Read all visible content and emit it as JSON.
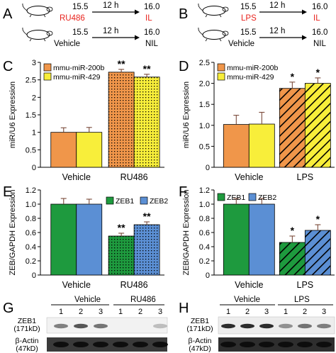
{
  "colors": {
    "orange": "#f0964a",
    "yellow": "#f8ee3a",
    "green": "#1e9a3e",
    "blue": "#5b8fd4",
    "treat_label": "#e8231d"
  },
  "panel_a": {
    "letter": "A",
    "rows": [
      {
        "t0": "15.5",
        "treatment": "RU486",
        "arrow_label": "12 h",
        "t1": "16.0",
        "outcome": "IL"
      },
      {
        "t0": "15.5",
        "treatment": "Vehicle",
        "arrow_label": "12 h",
        "t1": "16.0",
        "outcome": "NIL"
      }
    ]
  },
  "panel_b": {
    "letter": "B",
    "rows": [
      {
        "t0": "15.5",
        "treatment": "LPS",
        "arrow_label": "12 h",
        "t1": "16.0",
        "outcome": "IL"
      },
      {
        "t0": "15.5",
        "treatment": "Vehicle",
        "arrow_label": "12 h",
        "t1": "16.0",
        "outcome": "NIL"
      }
    ]
  },
  "chart_data": [
    {
      "panel": "C",
      "type": "bar",
      "ylabel": "miR/U6 Expression",
      "categories": [
        "Vehicle",
        "RU486"
      ],
      "ylim": [
        0,
        3.0
      ],
      "yticks": [
        "0",
        "0.5",
        "1",
        "1.5",
        "2",
        "2.5",
        "3"
      ],
      "series": [
        {
          "name": "mmu-miR-200b",
          "values": [
            1.0,
            2.72
          ],
          "errors": [
            0.13,
            0.08
          ],
          "color": "#f0964a"
        },
        {
          "name": "mmu-miR-429",
          "values": [
            1.0,
            2.58
          ],
          "errors": [
            0.14,
            0.08
          ],
          "color": "#f8ee3a"
        }
      ],
      "significance": [
        "",
        "**"
      ],
      "pattern": "dots",
      "legend": "top-left"
    },
    {
      "panel": "D",
      "type": "bar",
      "ylabel": "miR/U6 Expression",
      "categories": [
        "Vehicle",
        "LPS"
      ],
      "ylim": [
        0,
        2.5
      ],
      "yticks": [
        "0",
        "0.5",
        "1.0",
        "1.5",
        "2.0",
        "2.5"
      ],
      "series": [
        {
          "name": "mmu-miR-200b",
          "values": [
            1.02,
            1.88
          ],
          "errors": [
            0.22,
            0.15
          ],
          "color": "#f0964a"
        },
        {
          "name": "mmu-miR-429",
          "values": [
            1.03,
            2.0
          ],
          "errors": [
            0.28,
            0.13
          ],
          "color": "#f8ee3a"
        }
      ],
      "significance": [
        "",
        "*"
      ],
      "pattern": "hatch",
      "legend": "top-left"
    },
    {
      "panel": "E",
      "type": "bar",
      "ylabel": "ZEB/GAPDH Expression",
      "categories": [
        "Vehicle",
        "RU486"
      ],
      "ylim": [
        0,
        1.2
      ],
      "yticks": [
        "0",
        "0.2",
        "0.4",
        "0.6",
        "0.8",
        "1.0",
        "1.2"
      ],
      "series": [
        {
          "name": "ZEB1",
          "values": [
            1.0,
            0.55
          ],
          "errors": [
            0.08,
            0.04
          ],
          "color": "#1e9a3e"
        },
        {
          "name": "ZEB2",
          "values": [
            1.0,
            0.71
          ],
          "errors": [
            0.07,
            0.04
          ],
          "color": "#5b8fd4"
        }
      ],
      "significance": [
        "",
        "**"
      ],
      "pattern": "dots",
      "legend": "top-right"
    },
    {
      "panel": "F",
      "type": "bar",
      "ylabel": "ZEB/GAPDH Expression",
      "categories": [
        "Vehicle",
        "LPS"
      ],
      "ylim": [
        0,
        1.2
      ],
      "yticks": [
        "0",
        "0.2",
        "0.4",
        "0.6",
        "0.8",
        "1.0",
        "1.2"
      ],
      "series": [
        {
          "name": "ZEB1",
          "values": [
            1.0,
            0.46
          ],
          "errors": [
            0.08,
            0.09
          ],
          "color": "#1e9a3e"
        },
        {
          "name": "ZEB2",
          "values": [
            1.0,
            0.63
          ],
          "errors": [
            0.08,
            0.08
          ],
          "color": "#5b8fd4"
        }
      ],
      "significance": [
        "",
        "*"
      ],
      "pattern": "hatch",
      "legend": "top-left"
    }
  ],
  "panel_g": {
    "letter": "G",
    "groups": [
      "Vehicle",
      "RU486"
    ],
    "lanes": [
      "1",
      "2",
      "3",
      "1",
      "2",
      "3"
    ],
    "row1_label": [
      "ZEB1",
      "(171kD)"
    ],
    "row2_label": [
      "β-Actin",
      "(47kD)"
    ],
    "zeb1_intensity": [
      0.55,
      0.75,
      0.6,
      0.05,
      0.05,
      0.25
    ]
  },
  "panel_h": {
    "letter": "H",
    "groups": [
      "Vehicle",
      "LPS"
    ],
    "lanes": [
      "1",
      "2",
      "3",
      "1",
      "2",
      "3"
    ],
    "row1_label": [
      "ZEB1",
      "(171kD)"
    ],
    "row2_label": [
      "β-Actin",
      "(47kD)"
    ],
    "zeb1_intensity": [
      0.95,
      0.95,
      0.95,
      0.45,
      0.6,
      0.55
    ]
  }
}
